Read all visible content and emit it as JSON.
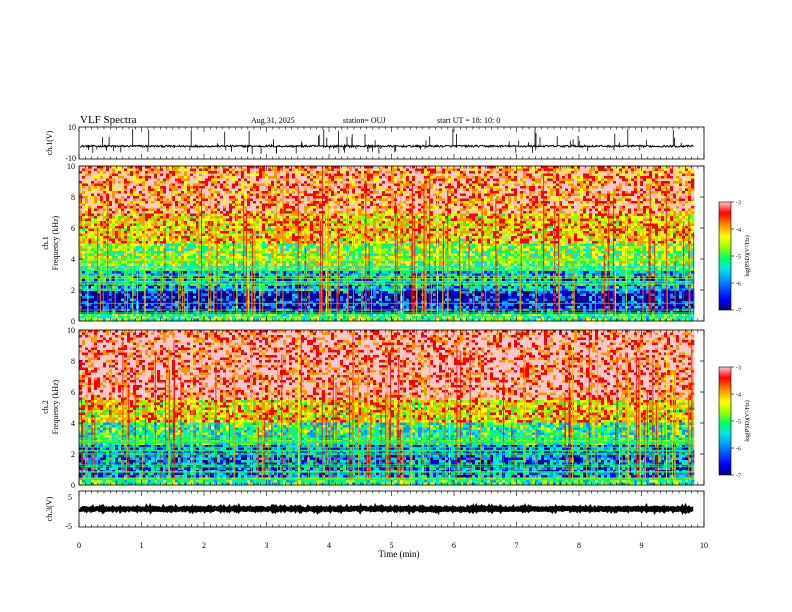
{
  "header": {
    "title": "VLF Spectra",
    "date": "Aug.31, 2025",
    "station": "station= OUJ",
    "start": "start  UT =   18: 10: 0"
  },
  "chart_data": [
    {
      "type": "line",
      "panel": "ch1-waveform",
      "ylabel": "ch.1(V)",
      "ylim": [
        -10,
        10
      ],
      "yticks": [
        "10",
        "-10"
      ],
      "xlim": [
        0,
        10
      ],
      "trace": {
        "baseline_v": -2,
        "noise_v": 0.6,
        "x_end_min": 9.83,
        "spikes_up_max_v": 9,
        "spikes_down_min_v": -7
      },
      "color": "#000000"
    },
    {
      "type": "heatmap",
      "panel": "ch1-spectrogram",
      "ylabel": [
        "ch.1",
        "Frequency (kHz)"
      ],
      "ylim": [
        0,
        10
      ],
      "yticks": [
        "0",
        "2",
        "4",
        "6",
        "8",
        "10"
      ],
      "xlim": [
        0,
        10
      ],
      "data_x_end_min": 9.83,
      "colorbar": {
        "label": "log(PSD)(V²/Hz)",
        "range": [
          -7,
          -3
        ],
        "ticks": [
          "-3",
          "-4",
          "-5",
          "-6",
          "-7"
        ]
      },
      "levels": [
        {
          "f_khz": [
            0,
            0.5
          ],
          "logpsd": -5.0
        },
        {
          "f_khz": [
            0.5,
            2.0
          ],
          "logpsd": -6.5
        },
        {
          "f_khz": [
            2.0,
            3.3
          ],
          "logpsd": -5.8
        },
        {
          "f_khz": [
            3.3,
            5.0
          ],
          "logpsd": -4.9
        },
        {
          "f_khz": [
            5.0,
            7.0
          ],
          "logpsd": -4.2
        },
        {
          "f_khz": [
            7.0,
            10.0
          ],
          "logpsd": -3.6
        }
      ]
    },
    {
      "type": "heatmap",
      "panel": "ch2-spectrogram",
      "ylabel": [
        "ch.2",
        "Frequency (kHz)"
      ],
      "ylim": [
        0,
        10
      ],
      "yticks": [
        "0",
        "2",
        "4",
        "6",
        "8",
        "10"
      ],
      "xlim": [
        0,
        10
      ],
      "data_x_end_min": 9.83,
      "colorbar": {
        "label": "log(PSD)(V²/Hz)",
        "range": [
          -7,
          -3
        ],
        "ticks": [
          "-3",
          "-4",
          "-5",
          "-6",
          "-7"
        ]
      },
      "levels": [
        {
          "f_khz": [
            0,
            0.5
          ],
          "logpsd": -5.2
        },
        {
          "f_khz": [
            0.5,
            2.6
          ],
          "logpsd": -6.0
        },
        {
          "f_khz": [
            2.6,
            4.0
          ],
          "logpsd": -5.3
        },
        {
          "f_khz": [
            4.0,
            5.5
          ],
          "logpsd": -4.3
        },
        {
          "f_khz": [
            5.5,
            10.0
          ],
          "logpsd": -3.3
        }
      ]
    },
    {
      "type": "line",
      "panel": "ch3-waveform",
      "ylabel": "ch.3(V)",
      "ylim": [
        -5,
        5
      ],
      "yticks": [
        "5",
        "-5"
      ],
      "xlim": [
        0,
        10
      ],
      "trace": {
        "baseline_v": 0,
        "noise_v": 0.25,
        "x_end_min": 9.83
      },
      "color": "#000000"
    }
  ],
  "xaxis": {
    "label": "Time (min)",
    "ticks": [
      "0",
      "1",
      "2",
      "3",
      "4",
      "5",
      "6",
      "7",
      "8",
      "9",
      "10"
    ]
  },
  "colormap": [
    "#00007a",
    "#0000ff",
    "#0096ff",
    "#00e6e6",
    "#00ff64",
    "#9bff00",
    "#ffff00",
    "#ff9600",
    "#ff0000",
    "#ffc8c8"
  ]
}
